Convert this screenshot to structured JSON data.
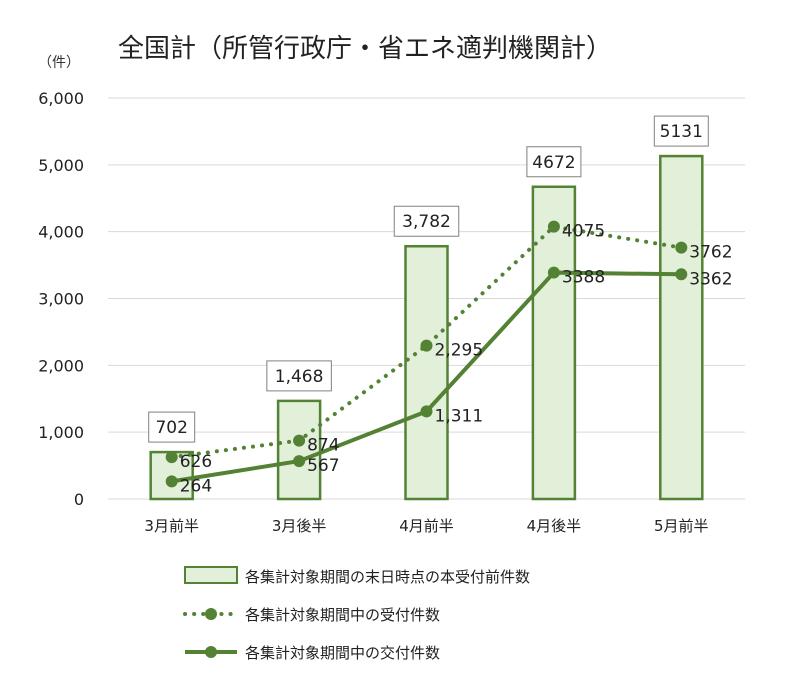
{
  "chart_data": {
    "type": "bar",
    "title": "全国計（所管行政庁・省エネ適判機関計）",
    "unit_label": "（件）",
    "categories": [
      "3月前半",
      "3月後半",
      "4月前半",
      "4月後半",
      "5月前半"
    ],
    "ylim": [
      0,
      6000
    ],
    "yticks": [
      0,
      1000,
      2000,
      3000,
      4000,
      5000,
      6000
    ],
    "ytick_labels": [
      "0",
      "1,000",
      "2,000",
      "3,000",
      "4,000",
      "5,000",
      "6,000"
    ],
    "grid": true,
    "legend_position": "bottom",
    "series": [
      {
        "name": "各集計対象期間の末日時点の本受付前件数",
        "kind": "bar",
        "values": [
          702,
          1468,
          3782,
          4672,
          5131
        ],
        "labels": [
          "702",
          "1,468",
          "3,782",
          "4672",
          "5131"
        ],
        "fill": "#e2efd9",
        "stroke": "#548235"
      },
      {
        "name": "各集計対象期間中の受付件数",
        "kind": "dotted-line",
        "values": [
          626,
          874,
          2295,
          4075,
          3762
        ],
        "labels": [
          "626",
          "874",
          "2,295",
          "4075",
          "3762"
        ],
        "color": "#548235"
      },
      {
        "name": "各集計対象期間中の交付件数",
        "kind": "line",
        "values": [
          264,
          567,
          1311,
          3388,
          3362
        ],
        "labels": [
          "264",
          "567",
          "1,311",
          "3388",
          "3362"
        ],
        "color": "#548235"
      }
    ]
  }
}
